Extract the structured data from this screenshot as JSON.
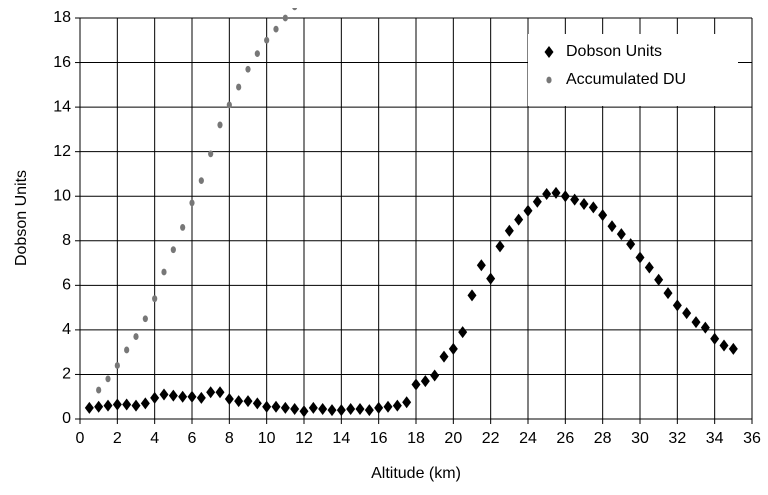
{
  "chart_data": {
    "type": "scatter",
    "xlabel": "Altitude (km)",
    "ylabel": "Dobson Units",
    "xlim": [
      0,
      36
    ],
    "xticks": [
      0,
      2,
      4,
      6,
      8,
      10,
      12,
      14,
      16,
      18,
      20,
      22,
      24,
      26,
      28,
      30,
      32,
      34,
      36
    ],
    "ylim": [
      0,
      18
    ],
    "yticks": [
      0,
      2,
      4,
      6,
      8,
      10,
      12,
      14,
      16,
      18
    ],
    "grid": true,
    "legend": "upper right",
    "series": [
      {
        "name": "Dobson Units",
        "color": "#000000",
        "marker": "diamond",
        "x": [
          0.5,
          1,
          1.5,
          2,
          2.5,
          3,
          3.5,
          4,
          4.5,
          5,
          5.5,
          6,
          6.5,
          7,
          7.5,
          8,
          8.5,
          9,
          9.5,
          10,
          10.5,
          11,
          11.5,
          12,
          12.5,
          13,
          13.5,
          14,
          14.5,
          15,
          15.5,
          16,
          16.5,
          17,
          17.5,
          18,
          18.5,
          19,
          19.5,
          20,
          20.5,
          21,
          21.5,
          22,
          22.5,
          23,
          23.5,
          24,
          24.5,
          25,
          25.5,
          26,
          26.5,
          27,
          27.5,
          28,
          28.5,
          29,
          29.5,
          30,
          30.5,
          31,
          31.5,
          32,
          32.5,
          33,
          33.5,
          34,
          34.5,
          35
        ],
        "values": [
          0.5,
          0.55,
          0.6,
          0.65,
          0.65,
          0.6,
          0.7,
          0.95,
          1.1,
          1.05,
          1.0,
          1.0,
          0.95,
          1.2,
          1.2,
          0.9,
          0.8,
          0.8,
          0.7,
          0.55,
          0.55,
          0.5,
          0.45,
          0.35,
          0.5,
          0.45,
          0.4,
          0.4,
          0.45,
          0.45,
          0.4,
          0.5,
          0.55,
          0.6,
          0.75,
          1.55,
          1.7,
          1.95,
          2.8,
          3.15,
          3.9,
          5.55,
          6.9,
          6.3,
          7.75,
          8.45,
          8.95,
          9.35,
          9.75,
          10.1,
          10.15,
          10.0,
          9.85,
          9.65,
          9.5,
          9.15,
          8.65,
          8.3,
          7.85,
          7.25,
          6.8,
          6.25,
          5.65,
          5.1,
          4.75,
          4.35,
          4.1,
          3.6,
          3.3,
          3.15
        ]
      },
      {
        "name": "Accumulated DU",
        "color": "#777777",
        "marker": "circle",
        "x": [
          0.5,
          1,
          1.5,
          2,
          2.5,
          3,
          3.5,
          4,
          4.5,
          5,
          5.5,
          6,
          6.5,
          7,
          7.5,
          8,
          8.5,
          9,
          9.5,
          10,
          10.5,
          11,
          11.5
        ],
        "values": [
          0.5,
          1.3,
          1.8,
          2.4,
          3.1,
          3.7,
          4.5,
          5.4,
          6.6,
          7.6,
          8.6,
          9.7,
          10.7,
          11.9,
          13.2,
          14.1,
          14.9,
          15.7,
          16.4,
          17.0,
          17.5,
          18.0,
          18.5
        ]
      }
    ]
  }
}
